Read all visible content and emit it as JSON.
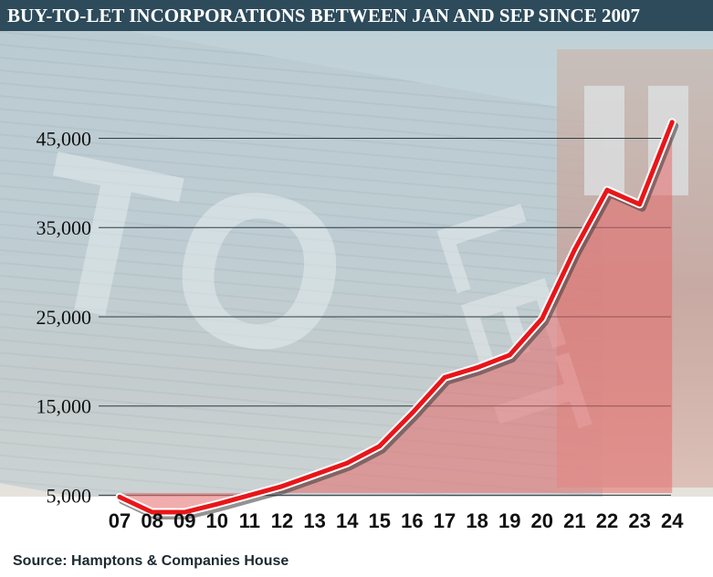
{
  "header": {
    "title": "BUY-TO-LET INCORPORATIONS BETWEEN JAN AND SEP SINCE 2007"
  },
  "footer": {
    "source": "Source: Hamptons & Companies House"
  },
  "chart_data": {
    "type": "line",
    "title": "BUY-TO-LET INCORPORATIONS BETWEEN JAN AND SEP SINCE 2007",
    "xlabel": "",
    "ylabel": "",
    "categories": [
      "07",
      "08",
      "09",
      "10",
      "11",
      "12",
      "13",
      "14",
      "15",
      "16",
      "17",
      "18",
      "19",
      "20",
      "21",
      "22",
      "23",
      "24"
    ],
    "series": [
      {
        "values": [
          4800,
          3100,
          3100,
          4000,
          5000,
          6000,
          7300,
          8600,
          10500,
          14200,
          18200,
          19300,
          20700,
          24800,
          32500,
          39200,
          37600,
          46800
        ]
      }
    ],
    "yticks": [
      5000,
      15000,
      25000,
      35000,
      45000
    ],
    "ytick_labels": [
      "5,000",
      "15,000",
      "25,000",
      "35,000",
      "45,000"
    ],
    "ylim": [
      0,
      50000
    ],
    "grid": true,
    "line_color": "#e8161a",
    "fill_color": "#e56a6a"
  }
}
